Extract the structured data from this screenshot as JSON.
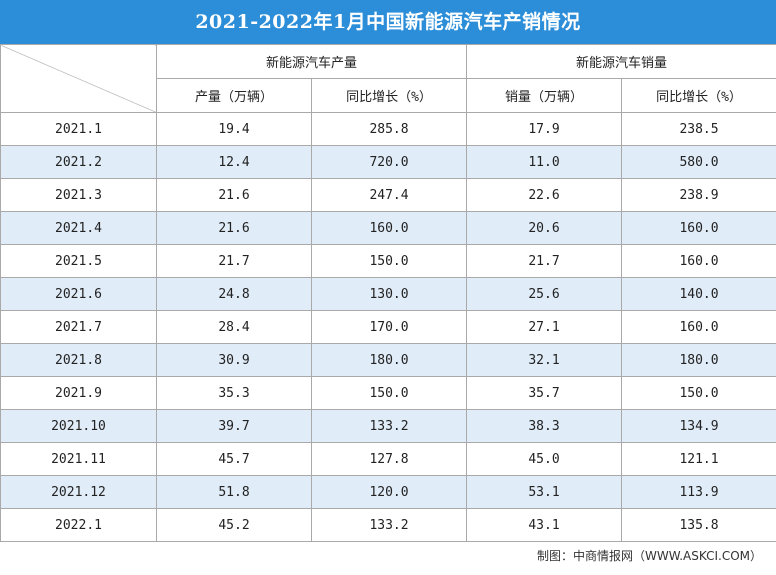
{
  "title": "2021-2022年1月中国新能源汽车产销情况",
  "header": {
    "production_group": "新能源汽车产量",
    "sales_group": "新能源汽车销量",
    "production_volume": "产量（万辆）",
    "production_growth": "同比增长（%）",
    "sales_volume": "销量（万辆）",
    "sales_growth": "同比增长（%）"
  },
  "rows": [
    {
      "month": "2021.1",
      "prod": "19.4",
      "prod_growth": "285.8",
      "sales": "17.9",
      "sales_growth": "238.5"
    },
    {
      "month": "2021.2",
      "prod": "12.4",
      "prod_growth": "720.0",
      "sales": "11.0",
      "sales_growth": "580.0"
    },
    {
      "month": "2021.3",
      "prod": "21.6",
      "prod_growth": "247.4",
      "sales": "22.6",
      "sales_growth": "238.9"
    },
    {
      "month": "2021.4",
      "prod": "21.6",
      "prod_growth": "160.0",
      "sales": "20.6",
      "sales_growth": "160.0"
    },
    {
      "month": "2021.5",
      "prod": "21.7",
      "prod_growth": "150.0",
      "sales": "21.7",
      "sales_growth": "160.0"
    },
    {
      "month": "2021.6",
      "prod": "24.8",
      "prod_growth": "130.0",
      "sales": "25.6",
      "sales_growth": "140.0"
    },
    {
      "month": "2021.7",
      "prod": "28.4",
      "prod_growth": "170.0",
      "sales": "27.1",
      "sales_growth": "160.0"
    },
    {
      "month": "2021.8",
      "prod": "30.9",
      "prod_growth": "180.0",
      "sales": "32.1",
      "sales_growth": "180.0"
    },
    {
      "month": "2021.9",
      "prod": "35.3",
      "prod_growth": "150.0",
      "sales": "35.7",
      "sales_growth": "150.0"
    },
    {
      "month": "2021.10",
      "prod": "39.7",
      "prod_growth": "133.2",
      "sales": "38.3",
      "sales_growth": "134.9"
    },
    {
      "month": "2021.11",
      "prod": "45.7",
      "prod_growth": "127.8",
      "sales": "45.0",
      "sales_growth": "121.1"
    },
    {
      "month": "2021.12",
      "prod": "51.8",
      "prod_growth": "120.0",
      "sales": "53.1",
      "sales_growth": "113.9"
    },
    {
      "month": "2022.1",
      "prod": "45.2",
      "prod_growth": "133.2",
      "sales": "43.1",
      "sales_growth": "135.8"
    }
  ],
  "footer": "制图：中商情报网（WWW.ASKCI.COM）",
  "colors": {
    "title_bg": "#2c8ed8",
    "alt_row_bg": "#e0ecf8",
    "border": "#a9a9a9"
  }
}
